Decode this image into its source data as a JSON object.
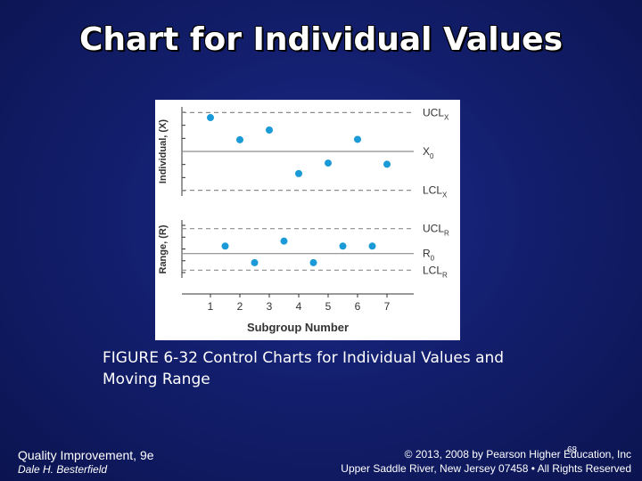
{
  "slide": {
    "title": "Chart for Individual Values",
    "caption_line1": "FIGURE 6-32 Control Charts for Individual Values and",
    "caption_line2": "Moving Range",
    "footer_left_1": "Quality Improvement, 9e",
    "footer_left_2": "Dale H. Besterfield",
    "footer_right_1": "© 2013, 2008 by Pearson Higher Education, Inc",
    "footer_right_2": "Upper Saddle River, New Jersey 07458 • All Rights Reserved",
    "page_number": "68"
  },
  "colors": {
    "background": "#131f6e",
    "point": "#1a9ad6",
    "line": "#8c8c8c"
  },
  "chart_data": [
    {
      "type": "scatter",
      "ylabel": "Individual, (X)",
      "x": [
        1,
        2,
        3,
        4,
        5,
        6,
        7
      ],
      "values": [
        0.87,
        0.3,
        0.55,
        -0.57,
        -0.3,
        0.31,
        -0.33
      ],
      "control_lines": [
        {
          "label": "UCL",
          "sub": "X",
          "value": 1.0,
          "style": "dashed"
        },
        {
          "label": "X",
          "sub": "0",
          "value": 0.0,
          "style": "solid"
        },
        {
          "label": "LCL",
          "sub": "X",
          "value": -1.0,
          "style": "dashed"
        }
      ],
      "ylim": [
        -1.1,
        1.1
      ]
    },
    {
      "type": "scatter",
      "ylabel": "Range, (R)",
      "x": [
        1.5,
        2.5,
        3.5,
        4.5,
        5.5,
        6.5
      ],
      "values": [
        0.58,
        0.18,
        0.7,
        0.18,
        0.58,
        0.58
      ],
      "control_lines": [
        {
          "label": "UCL",
          "sub": "R",
          "value": 1.0,
          "style": "dashed"
        },
        {
          "label": "R",
          "sub": "0",
          "value": 0.4,
          "style": "solid"
        },
        {
          "label": "LCL",
          "sub": "R",
          "value": 0.0,
          "style": "dashed"
        }
      ],
      "ylim": [
        -0.1,
        1.1
      ]
    }
  ],
  "xaxis": {
    "label": "Subgroup Number",
    "ticks": [
      "1",
      "2",
      "3",
      "4",
      "5",
      "6",
      "7"
    ]
  }
}
